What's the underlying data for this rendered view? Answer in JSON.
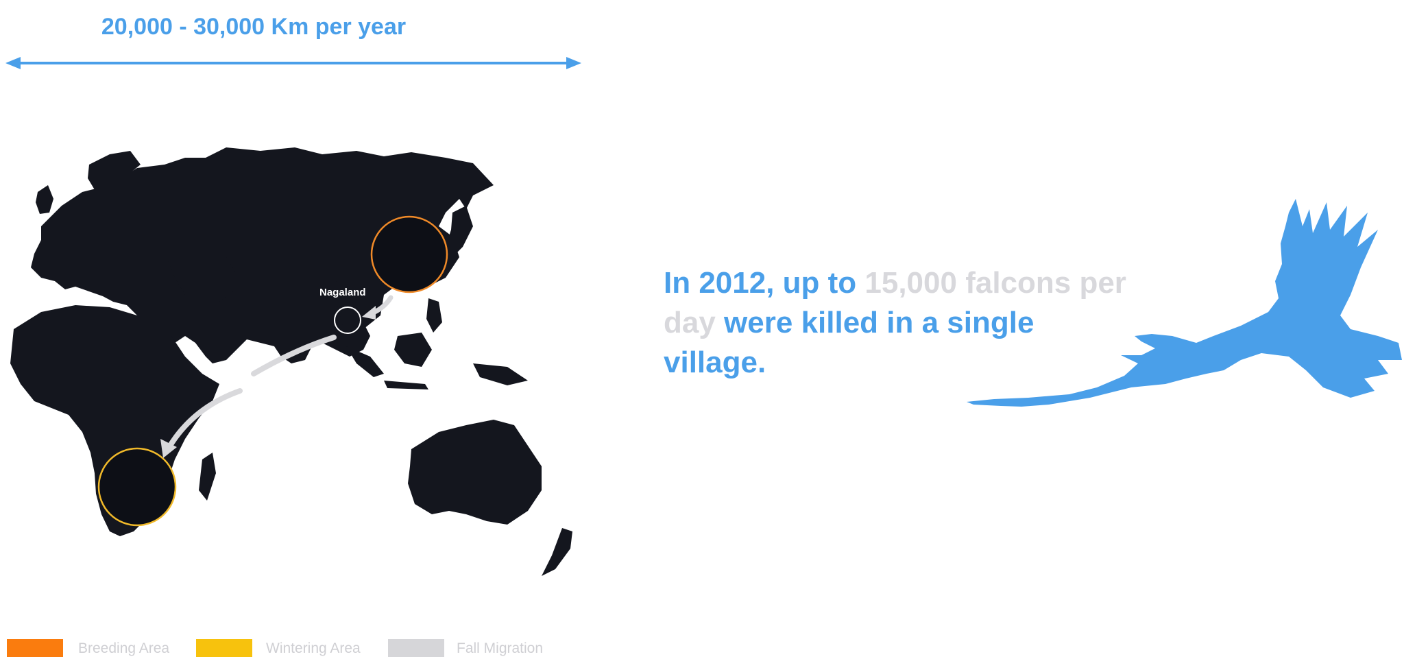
{
  "distance": {
    "label": "20,000 - 30,000 Km per year"
  },
  "map": {
    "place_label": "Nagaland",
    "land_color": "#14161e",
    "breeding_circle_color": "#f08a28",
    "wintering_circle_color": "#f0b92a",
    "route_color": "#d9d9dc"
  },
  "headline": {
    "part1": "In 2012, up to ",
    "part2": "15,000 falcons per day",
    "part3": " were killed in a single village."
  },
  "accent_color": "#4a9fe9",
  "bird_icon": "falcon-silhouette",
  "legend": [
    {
      "label": "Breeding Area",
      "color": "#fa7c0e"
    },
    {
      "label": "Wintering Area",
      "color": "#f7c20d"
    },
    {
      "label": "Fall Migration",
      "color": "#d6d6d9"
    }
  ]
}
